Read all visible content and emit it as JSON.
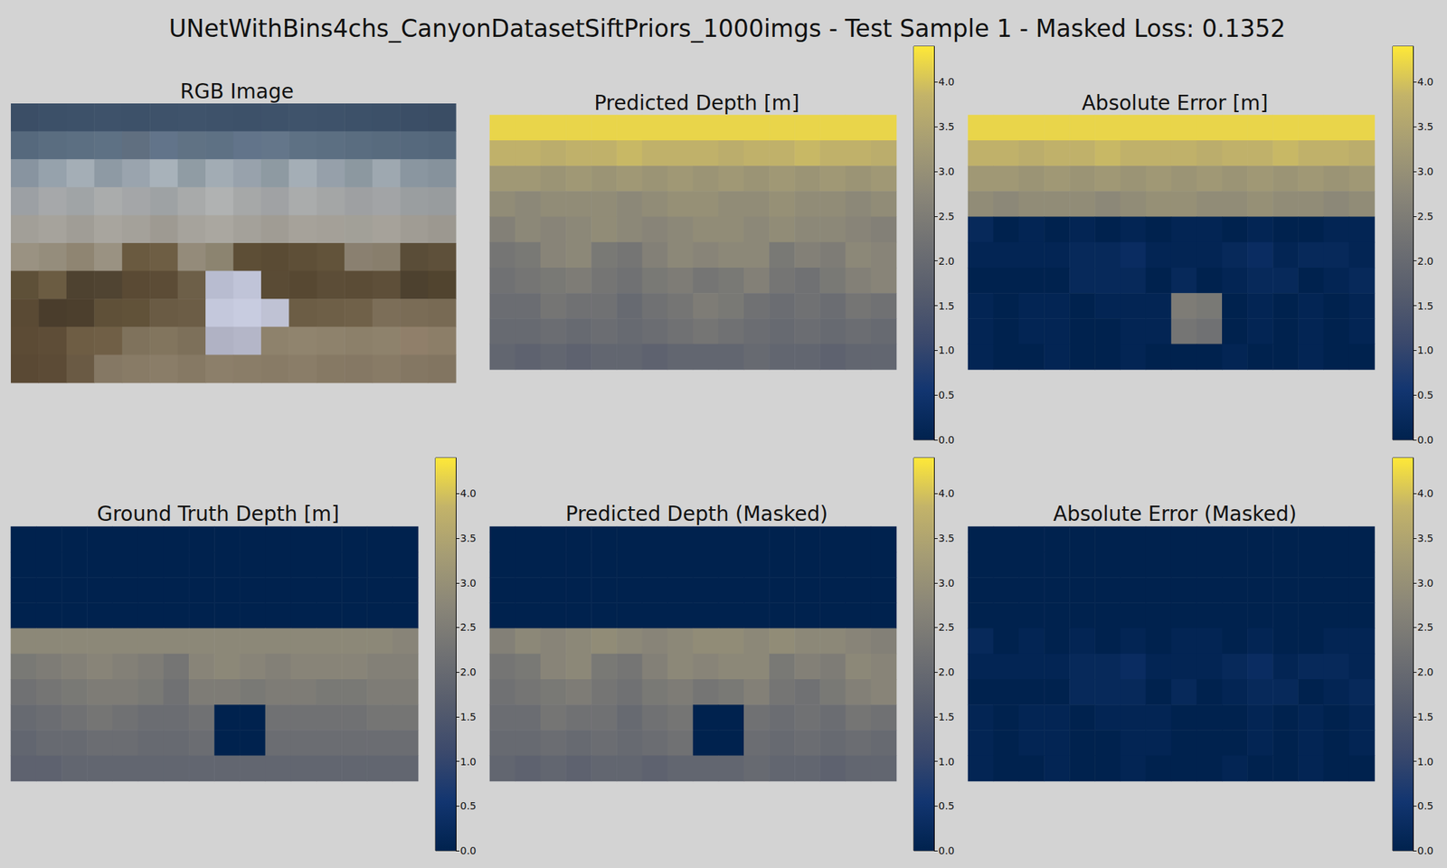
{
  "title": "UNetWithBins4chs_CanyonDatasetSiftPriors_1000imgs - Test Sample 1 - Masked Loss: 0.1352",
  "chart_data": [
    {
      "type": "image",
      "title": "RGB Image",
      "tick_labels": false,
      "pixels": [
        [
          "#3b4e66",
          "#3c5068",
          "#3d5169",
          "#3e526a",
          "#3d5169",
          "#3e526a",
          "#3f536b",
          "#3e526a",
          "#3d5169",
          "#3e526a",
          "#3f536b",
          "#3e526a",
          "#3d5169",
          "#3c5068",
          "#3b4e66",
          "#3a4d64"
        ],
        [
          "#56697d",
          "#5a6d80",
          "#5c6f82",
          "#5e7184",
          "#606f80",
          "#62748a",
          "#607284",
          "#5e7184",
          "#62748a",
          "#64768a",
          "#5e7184",
          "#5c6f82",
          "#5a6d80",
          "#586b7e",
          "#56697d",
          "#54677b"
        ],
        [
          "#8894a0",
          "#96a2ac",
          "#a4aeb6",
          "#8e9aa4",
          "#9aa4ae",
          "#a8b2ba",
          "#909ca4",
          "#a2acb4",
          "#98a2ac",
          "#8e9aa2",
          "#a4aeb6",
          "#96a0aa",
          "#8c98a0",
          "#9ea8b0",
          "#8a96a0",
          "#86929c"
        ],
        [
          "#9ca0a4",
          "#a6a8aa",
          "#a0a4a6",
          "#aaacac",
          "#a4a6a8",
          "#9ea2a4",
          "#a8aaaa",
          "#b0b2b2",
          "#a6a8a8",
          "#a0a2a4",
          "#aaacac",
          "#a4a6a6",
          "#9ea0a2",
          "#a2a4a6",
          "#9a9ea0",
          "#989c9e"
        ],
        [
          "#a29f98",
          "#a6a39c",
          "#a09d96",
          "#a8a59e",
          "#a4a19a",
          "#9e9a92",
          "#a6a39c",
          "#aaa7a0",
          "#a4a19a",
          "#a09c94",
          "#a6a29a",
          "#a4a098",
          "#a2a098",
          "#a6a29a",
          "#a09c94",
          "#9c9890"
        ],
        [
          "#9a9282",
          "#958d7c",
          "#8f8572",
          "#9a9282",
          "#6a5a40",
          "#6e5e44",
          "#948b7a",
          "#8c8470",
          "#5d4e36",
          "#5a4b34",
          "#5e4f37",
          "#62533a",
          "#8a8070",
          "#887e6c",
          "#5a4d38",
          "#5e503a"
        ],
        [
          "#5e5038",
          "#6b5c42",
          "#4e4230",
          "#504432",
          "#5a4a34",
          "#5c4c36",
          "#6d5f48",
          "#b8bcd0",
          "#c0c4d8",
          "#5a4b35",
          "#574832",
          "#5c4d37",
          "#5b4c36",
          "#5e4f39",
          "#4d412f",
          "#51442f"
        ],
        [
          "#5a4a34",
          "#4a3d2c",
          "#4c3f2d",
          "#5f5038",
          "#615239",
          "#6a5b44",
          "#6c5d46",
          "#c4c8dc",
          "#c8cce0",
          "#bfc2d4",
          "#6c5d45",
          "#6e5f47",
          "#706149",
          "#7c6e58",
          "#7a6c56",
          "#786a54"
        ],
        [
          "#5c4b35",
          "#5e4d37",
          "#6e5d44",
          "#705f46",
          "#7f725c",
          "#82755e",
          "#7d705a",
          "#b0b2c4",
          "#b4b6c8",
          "#8e826c",
          "#90846e",
          "#8e826c",
          "#8c806a",
          "#8e826c",
          "#907f6a",
          "#8c7e68"
        ],
        [
          "#5a4934",
          "#5c4b36",
          "#6a5a44",
          "#857864",
          "#887b66",
          "#8a7d68",
          "#867964",
          "#8c7f6a",
          "#8a7d68",
          "#887b66",
          "#8a7d68",
          "#867964",
          "#857864",
          "#887b66",
          "#847763",
          "#827561"
        ]
      ]
    },
    {
      "type": "heatmap",
      "title": "Predicted Depth [m]",
      "cells": [
        [
          4.2,
          4.2,
          4.2,
          4.2,
          4.2,
          4.2,
          4.2,
          4.2,
          4.2,
          4.2,
          4.2,
          4.2,
          4.2,
          4.2,
          4.2,
          4.2
        ],
        [
          3.8,
          3.8,
          3.7,
          3.8,
          3.8,
          3.9,
          3.8,
          3.8,
          3.8,
          3.7,
          3.8,
          3.8,
          3.9,
          3.8,
          3.8,
          3.7
        ],
        [
          3.2,
          3.2,
          3.1,
          3.2,
          3.1,
          3.2,
          3.1,
          3.2,
          3.1,
          3.2,
          3.1,
          3.2,
          3.1,
          3.2,
          3.1,
          3.2
        ],
        [
          2.9,
          2.8,
          2.9,
          2.9,
          2.9,
          2.8,
          2.9,
          3.0,
          3.0,
          2.9,
          2.9,
          3.0,
          2.9,
          2.9,
          2.8,
          2.9
        ],
        [
          2.6,
          2.8,
          2.7,
          2.8,
          2.9,
          2.8,
          2.7,
          2.8,
          2.9,
          2.9,
          2.8,
          2.9,
          2.8,
          2.8,
          2.7,
          2.6
        ],
        [
          2.3,
          2.4,
          2.7,
          2.8,
          2.4,
          2.3,
          2.6,
          2.8,
          2.7,
          2.8,
          2.8,
          2.4,
          2.6,
          2.5,
          2.8,
          2.7
        ],
        [
          2.2,
          2.3,
          2.4,
          2.5,
          2.3,
          2.2,
          2.4,
          2.5,
          2.3,
          2.4,
          2.6,
          2.3,
          2.2,
          2.4,
          2.6,
          2.7
        ],
        [
          2.1,
          2.1,
          2.3,
          2.2,
          2.2,
          2.0,
          2.2,
          2.3,
          2.5,
          2.4,
          2.2,
          2.1,
          2.2,
          2.1,
          2.3,
          2.2
        ],
        [
          2.0,
          2.0,
          2.1,
          2.0,
          2.1,
          2.0,
          2.1,
          2.2,
          2.3,
          2.2,
          2.1,
          2.0,
          2.1,
          2.0,
          2.1,
          2.0
        ],
        [
          1.9,
          1.8,
          1.9,
          1.8,
          1.9,
          1.9,
          1.8,
          1.9,
          1.9,
          1.9,
          2.0,
          1.9,
          1.9,
          1.8,
          1.9,
          1.9
        ]
      ],
      "color_range": [
        0,
        4.4
      ],
      "color_ticks": [
        {
          "value": 0,
          "label": "0.0"
        },
        0.5,
        {
          "value": 1,
          "label": "1.0"
        },
        1.5,
        {
          "value": 2,
          "label": "2.0"
        },
        2.5,
        {
          "value": 3,
          "label": "3.0"
        },
        3.5,
        {
          "value": 4,
          "label": "4.0"
        }
      ]
    },
    {
      "type": "heatmap",
      "title": "Absolute Error [m]",
      "cells": [
        [
          4.2,
          4.2,
          4.2,
          4.2,
          4.2,
          4.2,
          4.2,
          4.2,
          4.2,
          4.2,
          4.2,
          4.2,
          4.2,
          4.2,
          4.2,
          4.2
        ],
        [
          3.8,
          3.8,
          3.7,
          3.8,
          3.8,
          3.9,
          3.8,
          3.8,
          3.8,
          3.7,
          3.8,
          3.8,
          3.9,
          3.8,
          3.8,
          3.7
        ],
        [
          3.2,
          3.2,
          3.1,
          3.2,
          3.1,
          3.2,
          3.1,
          3.2,
          3.1,
          3.2,
          3.1,
          3.2,
          3.1,
          3.2,
          3.1,
          3.2
        ],
        [
          2.9,
          2.8,
          2.9,
          2.9,
          2.9,
          2.8,
          2.9,
          3.0,
          3.0,
          2.9,
          2.9,
          3.0,
          2.9,
          2.9,
          2.8,
          2.9
        ],
        [
          0.2,
          0,
          0.1,
          0,
          0.1,
          0,
          0.1,
          0,
          0.1,
          0.1,
          0,
          0.1,
          0,
          0,
          0.1,
          0.1
        ],
        [
          0.1,
          0.1,
          0.1,
          0.1,
          0.2,
          0.2,
          0.3,
          0.1,
          0.1,
          0.1,
          0.2,
          0.3,
          0.1,
          0.2,
          0.2,
          0.1
        ],
        [
          0,
          0,
          0,
          0,
          0.2,
          0.2,
          0.2,
          0,
          0.2,
          0,
          0.1,
          0.2,
          0.2,
          0,
          0.1,
          0.2
        ],
        [
          0.1,
          0,
          0.1,
          0.1,
          0,
          0.1,
          0.1,
          0.1,
          2.5,
          2.4,
          0,
          0.1,
          0,
          0.1,
          0,
          0.1
        ],
        [
          0.1,
          0,
          0.1,
          0.1,
          0,
          0,
          0.1,
          0.1,
          2.3,
          2.2,
          0,
          0.1,
          0,
          0.1,
          0,
          0.1
        ],
        [
          0.1,
          0,
          0,
          0.1,
          0,
          0,
          0.1,
          0,
          0,
          0,
          0.1,
          0,
          0,
          0.1,
          0,
          0
        ]
      ],
      "color_range": [
        0,
        4.4
      ],
      "color_ticks": [
        {
          "value": 0,
          "label": "0.0"
        },
        0.5,
        {
          "value": 1,
          "label": "1.0"
        },
        1.5,
        {
          "value": 2,
          "label": "2.0"
        },
        2.5,
        {
          "value": 3,
          "label": "3.0"
        },
        3.5,
        {
          "value": 4,
          "label": "4.0"
        }
      ]
    },
    {
      "type": "heatmap",
      "title": "Ground Truth Depth [m]",
      "cells": [
        [
          0,
          0,
          0,
          0,
          0,
          0,
          0,
          0,
          0,
          0,
          0,
          0,
          0,
          0,
          0,
          0
        ],
        [
          0,
          0,
          0,
          0,
          0,
          0,
          0,
          0,
          0,
          0,
          0,
          0,
          0,
          0,
          0,
          0
        ],
        [
          0,
          0,
          0,
          0,
          0,
          0,
          0,
          0,
          0,
          0,
          0,
          0,
          0,
          0,
          0,
          0
        ],
        [
          0,
          0,
          0,
          0,
          0,
          0,
          0,
          0,
          0,
          0,
          0,
          0,
          0,
          0,
          0,
          0
        ],
        [
          2.8,
          2.8,
          2.8,
          2.8,
          2.8,
          2.8,
          2.8,
          2.8,
          2.8,
          2.8,
          2.8,
          2.8,
          2.8,
          2.8,
          2.8,
          2.7
        ],
        [
          2.4,
          2.5,
          2.6,
          2.7,
          2.6,
          2.5,
          2.3,
          2.7,
          2.8,
          2.7,
          2.6,
          2.7,
          2.7,
          2.7,
          2.6,
          2.6
        ],
        [
          2.2,
          2.3,
          2.4,
          2.5,
          2.5,
          2.4,
          2.2,
          2.5,
          2.5,
          2.4,
          2.5,
          2.5,
          2.4,
          2.4,
          2.5,
          2.5
        ],
        [
          2.0,
          2.1,
          2.2,
          2.3,
          2.2,
          2.1,
          2.1,
          2.2,
          0,
          0,
          2.2,
          2.2,
          2.2,
          2.2,
          2.3,
          2.3
        ],
        [
          1.9,
          2.0,
          2.0,
          2.1,
          2.1,
          2.0,
          2.0,
          2.1,
          0,
          0,
          2.1,
          2.1,
          2.1,
          2.1,
          2.1,
          2.1
        ],
        [
          1.8,
          1.8,
          1.9,
          1.9,
          1.9,
          1.9,
          1.9,
          1.9,
          1.9,
          1.9,
          1.9,
          1.9,
          1.9,
          1.9,
          1.9,
          1.9
        ]
      ],
      "color_range": [
        0,
        4.4
      ],
      "color_ticks": [
        {
          "value": 0,
          "label": "0.0"
        },
        0.5,
        {
          "value": 1,
          "label": "1.0"
        },
        1.5,
        {
          "value": 2,
          "label": "2.0"
        },
        2.5,
        {
          "value": 3,
          "label": "3.0"
        },
        3.5,
        {
          "value": 4,
          "label": "4.0"
        }
      ]
    },
    {
      "type": "heatmap",
      "title": "Predicted Depth (Masked)",
      "cells": [
        [
          0,
          0,
          0,
          0,
          0,
          0,
          0,
          0,
          0,
          0,
          0,
          0,
          0,
          0,
          0,
          0
        ],
        [
          0,
          0,
          0,
          0,
          0,
          0,
          0,
          0,
          0,
          0,
          0,
          0,
          0,
          0,
          0,
          0
        ],
        [
          0,
          0,
          0,
          0,
          0,
          0,
          0,
          0,
          0,
          0,
          0,
          0,
          0,
          0,
          0,
          0
        ],
        [
          0,
          0,
          0,
          0,
          0,
          0,
          0,
          0,
          0,
          0,
          0,
          0,
          0,
          0,
          0,
          0
        ],
        [
          2.6,
          2.8,
          2.7,
          2.8,
          2.9,
          2.8,
          2.7,
          2.8,
          2.9,
          2.9,
          2.8,
          2.9,
          2.8,
          2.8,
          2.7,
          2.6
        ],
        [
          2.3,
          2.4,
          2.7,
          2.8,
          2.4,
          2.3,
          2.6,
          2.8,
          2.7,
          2.8,
          2.8,
          2.4,
          2.6,
          2.5,
          2.8,
          2.7
        ],
        [
          2.2,
          2.3,
          2.4,
          2.5,
          2.3,
          2.2,
          2.4,
          2.5,
          2.3,
          2.4,
          2.6,
          2.3,
          2.2,
          2.4,
          2.6,
          2.7
        ],
        [
          2.1,
          2.1,
          2.3,
          2.2,
          2.2,
          2.0,
          2.2,
          2.3,
          0,
          0,
          2.2,
          2.1,
          2.2,
          2.1,
          2.3,
          2.2
        ],
        [
          2.0,
          2.0,
          2.1,
          2.0,
          2.1,
          2.0,
          2.1,
          2.2,
          0,
          0,
          2.1,
          2.0,
          2.1,
          2.0,
          2.1,
          2.0
        ],
        [
          1.9,
          1.8,
          1.9,
          1.8,
          1.9,
          1.9,
          1.8,
          1.9,
          1.9,
          1.9,
          2.0,
          1.9,
          1.9,
          1.8,
          1.9,
          1.9
        ]
      ],
      "color_range": [
        0,
        4.4
      ],
      "color_ticks": [
        {
          "value": 0,
          "label": "0.0"
        },
        0.5,
        {
          "value": 1,
          "label": "1.0"
        },
        1.5,
        {
          "value": 2,
          "label": "2.0"
        },
        2.5,
        {
          "value": 3,
          "label": "3.0"
        },
        3.5,
        {
          "value": 4,
          "label": "4.0"
        }
      ]
    },
    {
      "type": "heatmap",
      "title": "Absolute Error (Masked)",
      "cells": [
        [
          0,
          0,
          0,
          0,
          0,
          0,
          0,
          0,
          0,
          0,
          0,
          0,
          0,
          0,
          0,
          0
        ],
        [
          0,
          0,
          0,
          0,
          0,
          0,
          0,
          0,
          0,
          0,
          0,
          0,
          0,
          0,
          0,
          0
        ],
        [
          0,
          0,
          0,
          0,
          0,
          0,
          0,
          0,
          0,
          0,
          0,
          0,
          0,
          0,
          0,
          0
        ],
        [
          0,
          0,
          0,
          0,
          0,
          0,
          0,
          0,
          0,
          0,
          0,
          0,
          0,
          0,
          0,
          0
        ],
        [
          0.2,
          0,
          0.1,
          0,
          0.1,
          0,
          0.1,
          0,
          0.1,
          0.1,
          0,
          0.1,
          0,
          0,
          0.1,
          0.1
        ],
        [
          0.1,
          0.1,
          0.1,
          0.1,
          0.2,
          0.2,
          0.3,
          0.1,
          0.1,
          0.1,
          0.2,
          0.3,
          0.1,
          0.2,
          0.2,
          0.1
        ],
        [
          0,
          0,
          0,
          0,
          0.2,
          0.2,
          0.2,
          0,
          0.2,
          0,
          0.1,
          0.2,
          0.2,
          0,
          0.1,
          0.2
        ],
        [
          0.1,
          0,
          0.1,
          0.1,
          0,
          0.1,
          0.1,
          0.1,
          0,
          0,
          0,
          0.1,
          0,
          0.1,
          0,
          0.1
        ],
        [
          0.1,
          0,
          0.1,
          0.1,
          0,
          0,
          0.1,
          0.1,
          0,
          0,
          0,
          0.1,
          0,
          0.1,
          0,
          0.1
        ],
        [
          0.1,
          0,
          0,
          0.1,
          0,
          0,
          0.1,
          0,
          0,
          0,
          0.1,
          0,
          0,
          0.1,
          0,
          0
        ]
      ],
      "color_range": [
        0,
        4.4
      ],
      "color_ticks": [
        {
          "value": 0,
          "label": "0.0"
        },
        0.5,
        {
          "value": 1,
          "label": "1.0"
        },
        1.5,
        {
          "value": 2,
          "label": "2.0"
        },
        2.5,
        {
          "value": 3,
          "label": "3.0"
        },
        3.5,
        {
          "value": 4,
          "label": "4.0"
        }
      ]
    }
  ]
}
